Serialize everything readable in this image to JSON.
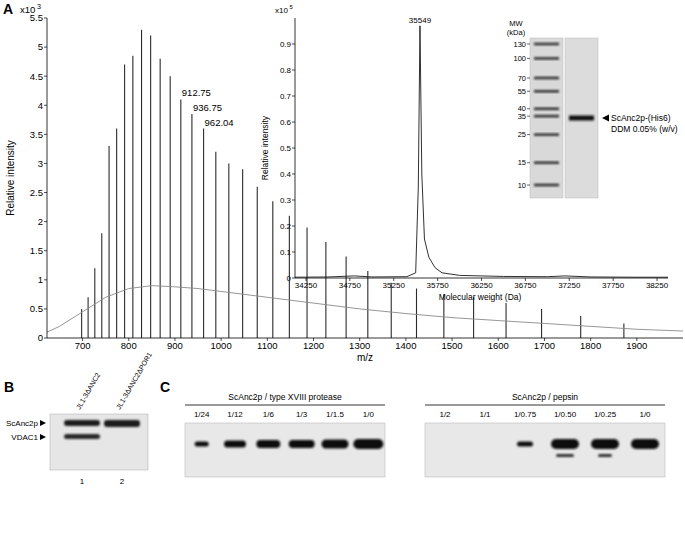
{
  "panels": {
    "labels": [
      "A",
      "B",
      "C"
    ]
  },
  "chart_data": [
    {
      "type": "line",
      "xlabel": "m/z",
      "ylabel": "Relative intensity",
      "y_scale_label": {
        "base": "x10",
        "exponent": "3"
      },
      "xlim": [
        623,
        2000
      ],
      "ylim": [
        0,
        5.5
      ],
      "xticks": [
        700,
        800,
        900,
        1000,
        1100,
        1200,
        1300,
        1400,
        1500,
        1600,
        1700,
        1800,
        1900
      ],
      "yticks": [
        0,
        0.5,
        1,
        1.5,
        2,
        2.5,
        3,
        3.5,
        4,
        4.5,
        5,
        5.5
      ],
      "grid": false,
      "series": [
        {
          "type": "stem",
          "color": "#2b2b2b",
          "x": [
            698.0,
            712.0,
            726.5,
            741.6,
            757.4,
            773.8,
            791.0,
            808.9,
            827.7,
            847.4,
            868.0,
            889.7,
            912.75,
            936.75,
            962.04,
            988.5,
            1016.7,
            1046.6,
            1078.2,
            1111.9,
            1147.7,
            1186.0,
            1226.8,
            1270.6,
            1317.6,
            1368.3,
            1423.0,
            1482.2,
            1546.6,
            1616.9,
            1693.8,
            1778.5,
            1872.0
          ],
          "values": [
            0.5,
            0.7,
            1.2,
            1.8,
            3.3,
            3.6,
            4.7,
            4.85,
            5.3,
            5.2,
            4.8,
            4.5,
            4.1,
            3.85,
            3.6,
            3.2,
            3.0,
            2.9,
            2.6,
            2.35,
            2.1,
            1.9,
            1.65,
            1.4,
            1.15,
            0.95,
            0.85,
            0.75,
            0.7,
            0.6,
            0.5,
            0.38,
            0.25
          ]
        },
        {
          "type": "line",
          "color": "#8a8a8a",
          "x": [
            623,
            650,
            700,
            750,
            800,
            850,
            900,
            950,
            1000,
            1100,
            1200,
            1300,
            1400,
            1500,
            1600,
            1700,
            1800,
            1900,
            2000
          ],
          "values": [
            0.1,
            0.2,
            0.45,
            0.7,
            0.85,
            0.9,
            0.88,
            0.85,
            0.8,
            0.7,
            0.6,
            0.5,
            0.42,
            0.35,
            0.3,
            0.25,
            0.2,
            0.15,
            0.12
          ]
        }
      ],
      "annotations": [
        {
          "x": 912.75,
          "y": 4.1,
          "text": "912.75"
        },
        {
          "x": 936.75,
          "y": 3.85,
          "text": "936.75"
        },
        {
          "x": 962.04,
          "y": 3.6,
          "text": "962.04"
        }
      ]
    },
    {
      "type": "line",
      "xlabel": "Molecular weight (Da)",
      "ylabel": "Relative intensity",
      "y_scale_label": {
        "base": "x10",
        "exponent": "5"
      },
      "xlim": [
        34125,
        38375
      ],
      "ylim": [
        0,
        1
      ],
      "xticks": [
        34250,
        34750,
        35250,
        35750,
        36250,
        36750,
        37250,
        37750,
        38250
      ],
      "yticks": [
        0,
        0.1,
        0.2,
        0.3,
        0.4,
        0.5,
        0.6,
        0.7,
        0.8,
        0.9
      ],
      "grid": false,
      "series": [
        {
          "type": "line",
          "color": "#1a1a1a",
          "x": [
            34125,
            34500,
            34800,
            35000,
            35400,
            35500,
            35530,
            35549,
            35570,
            35600,
            35650,
            35720,
            35800,
            36000,
            36500,
            37000,
            37200,
            37500,
            38000,
            38375
          ],
          "values": [
            0.003,
            0.004,
            0.008,
            0.004,
            0.005,
            0.02,
            0.35,
            0.97,
            0.4,
            0.15,
            0.08,
            0.04,
            0.02,
            0.01,
            0.006,
            0.005,
            0.008,
            0.004,
            0.003,
            0.003
          ]
        }
      ],
      "annotations": [
        {
          "x": 35549,
          "y": 0.97,
          "text": "35549"
        }
      ]
    }
  ],
  "gel": {
    "title": [
      "MW",
      "(kDa)"
    ],
    "markers": [
      130,
      100,
      70,
      55,
      40,
      35,
      25,
      15,
      10
    ],
    "band_label": [
      "ScAnc2p-(His6)",
      "DDM 0.05% (w/v)"
    ]
  },
  "blot_b": {
    "lanes": [
      "JL1-3ΔANC2",
      "JL1-3ΔANC2ΔPOR1"
    ],
    "lane_numbers": [
      1,
      2
    ],
    "bands": [
      "ScAnc2p",
      "VDAC1"
    ]
  },
  "blot_c": [
    {
      "title": "ScAnc2p / type XVIII protease",
      "lanes": [
        "1/24",
        "1/12",
        "1/6",
        "1/3",
        "1/1.5",
        "1/0"
      ]
    },
    {
      "title": "ScAnc2p / pepsin",
      "lanes": [
        "1/2",
        "1/1",
        "1/0.75",
        "1/0.50",
        "1/0.25",
        "1/0"
      ]
    }
  ]
}
